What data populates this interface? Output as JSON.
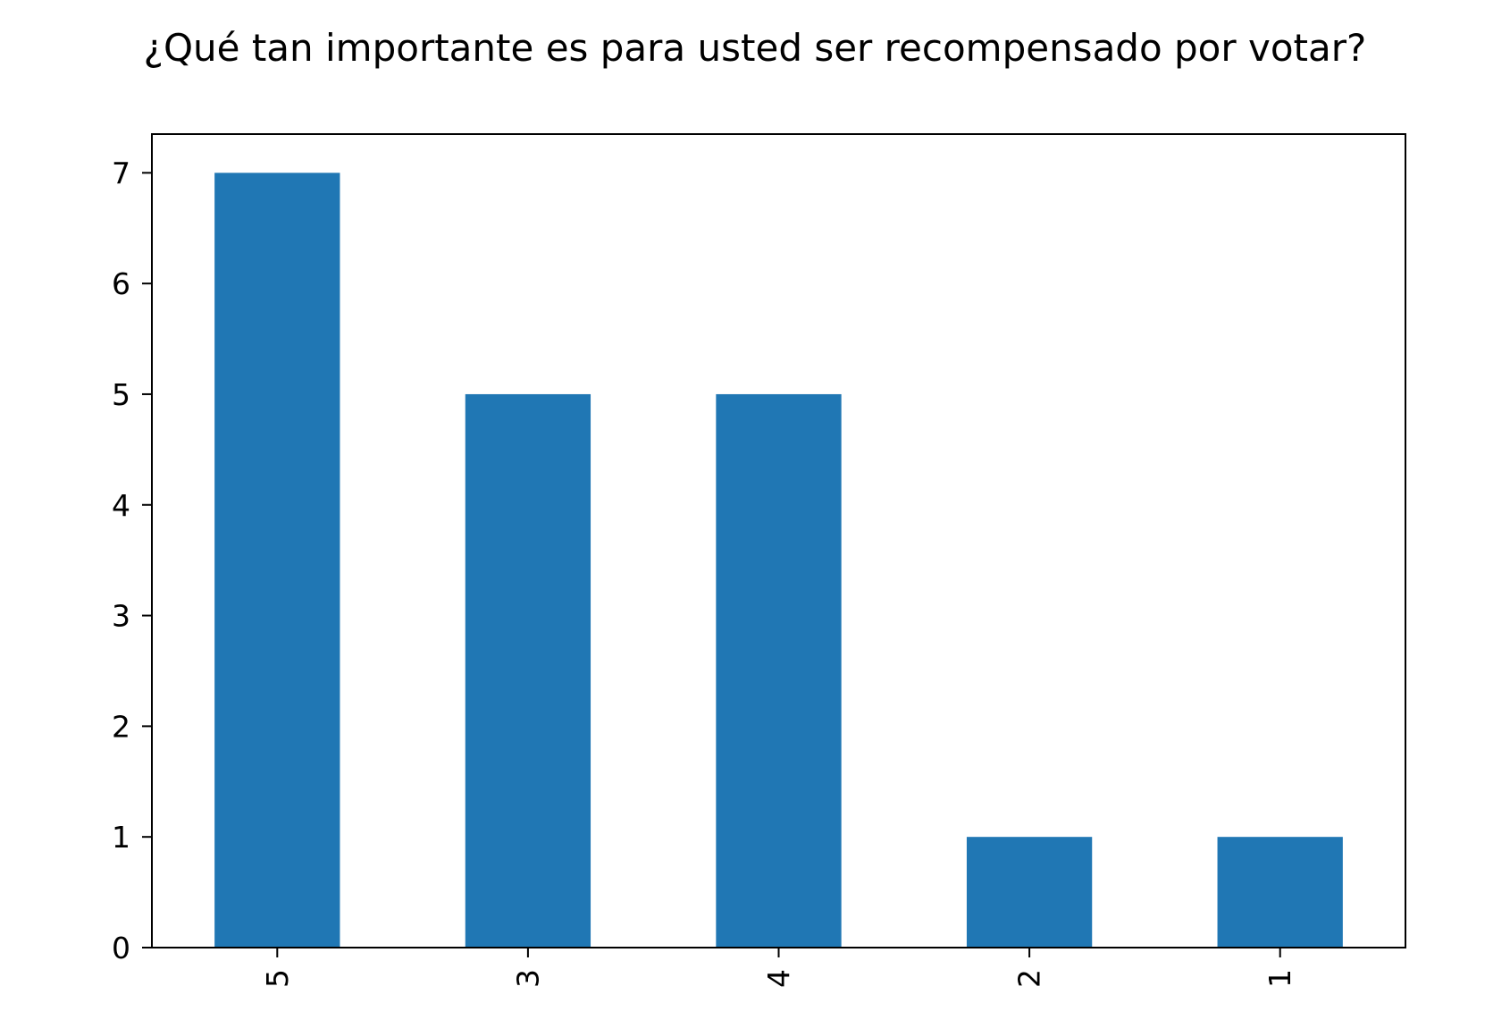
{
  "chart_data": {
    "type": "bar",
    "title": "¿Qué tan importante es para usted ser recompensado por votar?",
    "xlabel": "",
    "ylabel": "",
    "categories": [
      "5",
      "3",
      "4",
      "2",
      "1"
    ],
    "values": [
      7,
      5,
      5,
      1,
      1
    ],
    "ylim": [
      0,
      7.35
    ],
    "yticks": [
      "0",
      "1",
      "2",
      "3",
      "4",
      "5",
      "6",
      "7"
    ],
    "bar_color": "#2077b4",
    "x_tick_rotation": "vertical",
    "grid": false,
    "legend": "none"
  }
}
